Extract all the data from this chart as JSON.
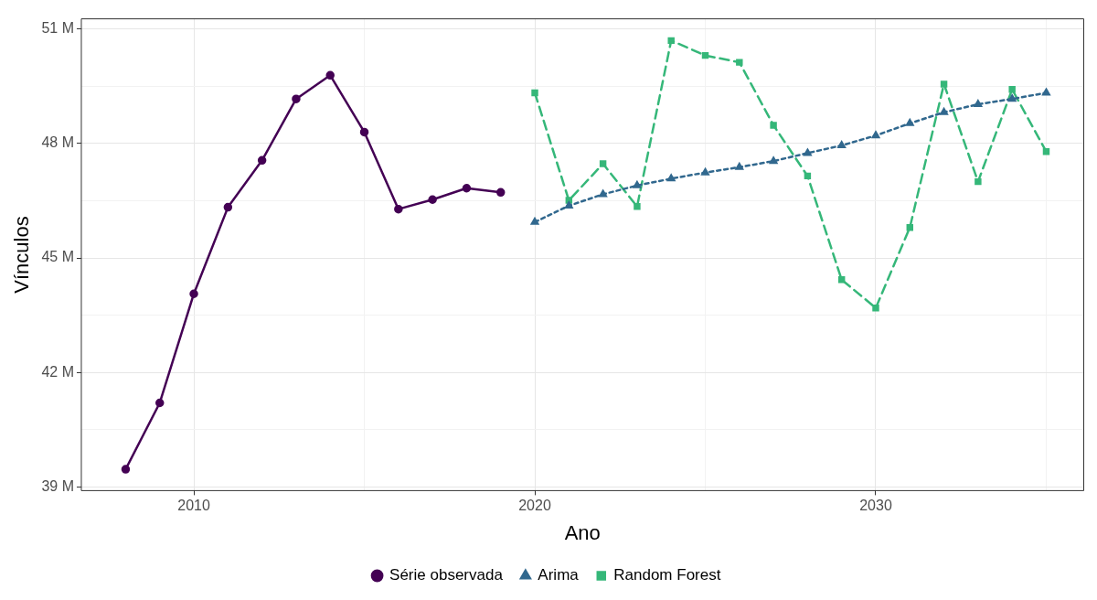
{
  "chart_data": {
    "type": "line",
    "xlabel": "Ano",
    "ylabel": "Vínculos",
    "xlim": [
      2006.7,
      2036.1
    ],
    "xticks": [
      2010,
      {
        "value": 2015,
        "label": null
      },
      2020,
      {
        "value": 2025,
        "label": null
      },
      2030,
      {
        "value": 2035,
        "label": null
      }
    ],
    "ylim": [
      38.9,
      51.27
    ],
    "yticks": [
      {
        "value": 39,
        "label": "39 M"
      },
      {
        "value": 40.5,
        "label": null
      },
      {
        "value": 42,
        "label": "42 M"
      },
      {
        "value": 43.5,
        "label": null
      },
      {
        "value": 45,
        "label": "45 M"
      },
      {
        "value": 46.5,
        "label": null
      },
      {
        "value": 48,
        "label": "48 M"
      },
      {
        "value": 49.5,
        "label": null
      },
      {
        "value": 51,
        "label": "51 M"
      }
    ],
    "grid": true,
    "legend": "bottom",
    "series": [
      {
        "name": "Série observada",
        "color": "#440154",
        "marker": "circle",
        "line_style": "solid",
        "x": [
          2008,
          2009,
          2010,
          2011,
          2012,
          2013,
          2014,
          2015,
          2016,
          2017,
          2018,
          2019
        ],
        "values": [
          39.46,
          41.2,
          44.06,
          46.33,
          47.56,
          49.17,
          49.79,
          48.3,
          46.28,
          46.53,
          46.83,
          46.72
        ]
      },
      {
        "name": "Arima",
        "color": "#31688e",
        "marker": "triangle",
        "line_style": "dotted",
        "x": [
          2020,
          2021,
          2022,
          2023,
          2024,
          2025,
          2026,
          2027,
          2028,
          2029,
          2030,
          2031,
          2032,
          2033,
          2034,
          2035
        ],
        "values": [
          45.94,
          46.37,
          46.67,
          46.9,
          47.08,
          47.24,
          47.38,
          47.54,
          47.75,
          47.95,
          48.21,
          48.53,
          48.82,
          49.03,
          49.17,
          49.33
        ]
      },
      {
        "name": "Random Forest",
        "color": "#35b779",
        "marker": "square",
        "line_style": "dashed",
        "x": [
          2020,
          2021,
          2022,
          2023,
          2024,
          2025,
          2026,
          2027,
          2028,
          2029,
          2030,
          2031,
          2032,
          2033,
          2034,
          2035
        ],
        "values": [
          49.33,
          46.51,
          47.47,
          46.35,
          50.7,
          50.31,
          50.13,
          48.48,
          47.15,
          44.43,
          43.69,
          45.8,
          49.56,
          47.0,
          49.42,
          47.79
        ]
      }
    ]
  }
}
